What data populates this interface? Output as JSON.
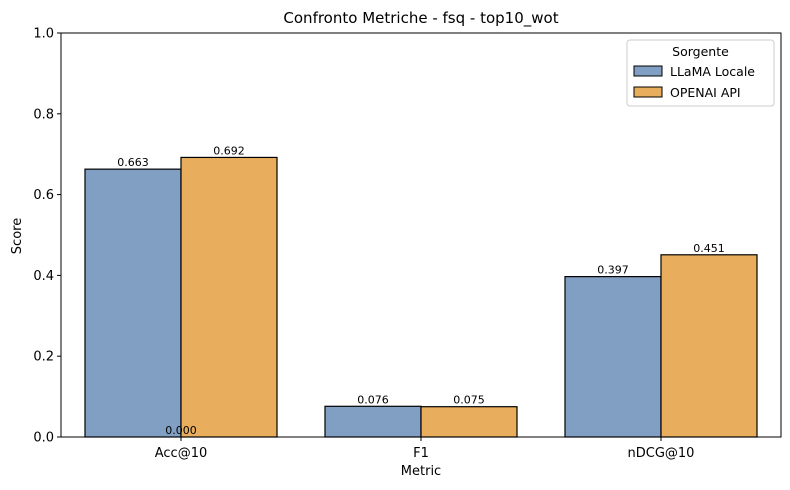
{
  "chart_data": {
    "type": "bar",
    "title": "Confronto Metriche - fsq - top10_wot",
    "xlabel": "Metric",
    "ylabel": "Score",
    "ylim": [
      0,
      1
    ],
    "yticks": [
      0.0,
      0.2,
      0.4,
      0.6,
      0.8,
      1.0
    ],
    "ytick_labels": [
      "0.0",
      "0.2",
      "0.4",
      "0.6",
      "0.8",
      "1.0"
    ],
    "categories": [
      "Acc@10",
      "F1",
      "nDCG@10"
    ],
    "legend_title": "Sorgente",
    "legend_position": "top-right",
    "grid": false,
    "series": [
      {
        "name": "LLaMA Locale",
        "color": "#819fc3",
        "values": [
          0.663,
          0.076,
          0.397
        ],
        "labels": [
          "0.663",
          "0.076",
          "0.397"
        ]
      },
      {
        "name": "OPENAI API",
        "color": "#e8ae5d",
        "values": [
          0.692,
          0.075,
          0.451
        ],
        "labels": [
          "0.692",
          "0.075",
          "0.451"
        ]
      }
    ],
    "annotations": [
      {
        "text": "0.000",
        "x": "Acc@10",
        "y": 0.0
      }
    ]
  }
}
